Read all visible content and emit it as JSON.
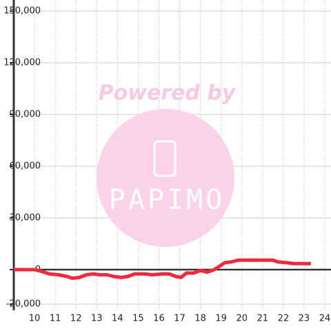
{
  "chart_data": {
    "type": "line",
    "watermark": "Powered by",
    "watermark_logo": "PAPIMO",
    "x": [
      9.0,
      10,
      10.33,
      10.73,
      11.17,
      11.57,
      11.83,
      12.17,
      12.5,
      12.83,
      13.17,
      13.5,
      13.83,
      14.17,
      14.5,
      14.83,
      15.33,
      15.67,
      16.17,
      16.5,
      16.83,
      17.07,
      17.33,
      17.67,
      18,
      18.33,
      18.67,
      18.93,
      19.17,
      19.5,
      19.83,
      21.5,
      21.73,
      22.17,
      22.5,
      23.33
    ],
    "series": [
      {
        "color": "#ee2a3f",
        "values": [
          0,
          0,
          -1000,
          -2500,
          -3000,
          -4000,
          -5000,
          -4500,
          -3000,
          -2500,
          -3000,
          -3000,
          -4000,
          -4500,
          -4000,
          -2500,
          -2500,
          -3000,
          -2500,
          -2500,
          -4000,
          -4500,
          -2000,
          -2000,
          -500,
          -1500,
          0,
          2000,
          4000,
          4500,
          5500,
          5500,
          4500,
          4000,
          3500,
          3500
        ]
      }
    ],
    "xlim": [
      9,
      24.3
    ],
    "ylim": [
      -20000,
      150000
    ],
    "xticks": [
      10,
      11,
      12,
      13,
      14,
      15,
      16,
      17,
      18,
      19,
      20,
      21,
      22,
      23,
      24
    ],
    "yticks": [
      {
        "value": -20000,
        "label": "-20,000"
      },
      0,
      {
        "value": 30000,
        "label": "30,000"
      },
      {
        "value": 60000,
        "label": "60,000"
      },
      {
        "value": 90000,
        "label": "90,000"
      },
      {
        "value": 120000,
        "label": "120,000"
      },
      {
        "value": 150000,
        "label": "150,000"
      }
    ],
    "grid": true
  }
}
